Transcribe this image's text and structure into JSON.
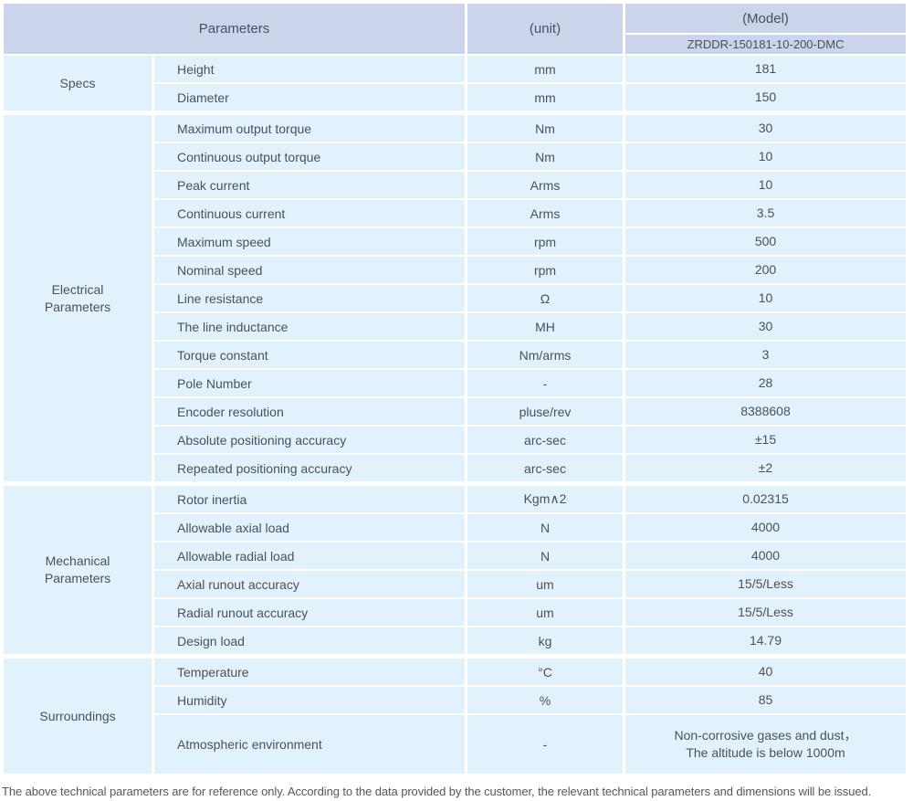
{
  "colors": {
    "header_bg": "#cbd4ea",
    "cell_bg": "#e2f2fc",
    "grid_gap": "#ffffff",
    "text": "#4b505a"
  },
  "table": {
    "header": {
      "parameters": "Parameters",
      "unit": "(unit)",
      "model": "(Model)",
      "model_number": "ZRDDR-150181-10-200-DMC"
    },
    "sections": [
      {
        "label": "Specs",
        "rows": [
          {
            "param": "Height",
            "unit": "mm",
            "value": "181"
          },
          {
            "param": "Diameter",
            "unit": "mm",
            "value": "150"
          }
        ]
      },
      {
        "label": "Electrical\nParameters",
        "rows": [
          {
            "param": "Maximum output torque",
            "unit": "Nm",
            "value": "30"
          },
          {
            "param": "Continuous output torque",
            "unit": "Nm",
            "value": "10"
          },
          {
            "param": "Peak current",
            "unit": "Arms",
            "value": "10"
          },
          {
            "param": "Continuous current",
            "unit": "Arms",
            "value": "3.5"
          },
          {
            "param": "Maximum speed",
            "unit": "rpm",
            "value": "500"
          },
          {
            "param": "Nominal speed",
            "unit": "rpm",
            "value": "200"
          },
          {
            "param": "Line resistance",
            "unit": "Ω",
            "value": "10"
          },
          {
            "param": "The line inductance",
            "unit": "MH",
            "value": "30"
          },
          {
            "param": "Torque constant",
            "unit": "Nm/arms",
            "value": "3"
          },
          {
            "param": "Pole Number",
            "unit": "-",
            "value": "28"
          },
          {
            "param": "Encoder resolution",
            "unit": "pluse/rev",
            "value": "8388608"
          },
          {
            "param": "Absolute positioning accuracy",
            "unit": "arc-sec",
            "value": "±15"
          },
          {
            "param": "Repeated positioning accuracy",
            "unit": "arc-sec",
            "value": "±2"
          }
        ]
      },
      {
        "label": "Mechanical\nParameters",
        "rows": [
          {
            "param": "Rotor inertia",
            "unit": "Kgm∧2",
            "value": "0.02315"
          },
          {
            "param": "Allowable axial load",
            "unit": "N",
            "value": "4000"
          },
          {
            "param": "Allowable radial load",
            "unit": "N",
            "value": "4000"
          },
          {
            "param": "Axial runout accuracy",
            "unit": "um",
            "value": "15/5/Less"
          },
          {
            "param": "Radial runout accuracy",
            "unit": "um",
            "value": "15/5/Less"
          },
          {
            "param": "Design load",
            "unit": "kg",
            "value": "14.79"
          }
        ]
      },
      {
        "label": "Surroundings",
        "rows": [
          {
            "param": "Temperature",
            "unit": "°C",
            "value": "40"
          },
          {
            "param": "Humidity",
            "unit": "%",
            "value": "85"
          },
          {
            "param": "Atmospheric environment",
            "unit": "-",
            "value": "Non-corrosive gases and dust，\nThe altitude is below 1000m"
          }
        ]
      }
    ]
  },
  "footer": {
    "note": "The above technical parameters are for reference only. According to the data provided by the customer, the relevant technical parameters and dimensions will be issued."
  }
}
